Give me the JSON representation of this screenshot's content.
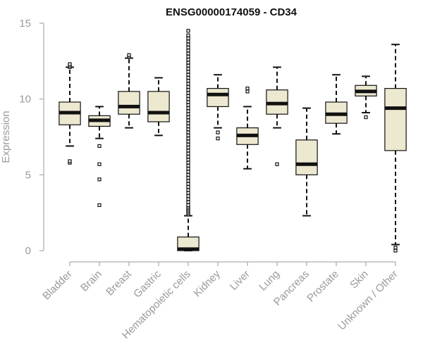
{
  "chart_data": {
    "type": "boxplot",
    "title": "ENSG00000174059 - CD34",
    "xlabel": "",
    "ylabel": "Expression",
    "ylim": [
      0,
      15
    ],
    "yticks": [
      0,
      5,
      10,
      15
    ],
    "grid": false,
    "legend": "none",
    "colors": {
      "box_fill": "#ede8d0",
      "box_stroke": "#111111",
      "axis": "#9a9a9a",
      "title": "#111111"
    },
    "categories": [
      "Bladder",
      "Brain",
      "Breast",
      "Gastric",
      "Hematopoietic cells",
      "Kidney",
      "Liver",
      "Lung",
      "Pancreas",
      "Prostate",
      "Skin",
      "Unknown / Other"
    ],
    "boxes": [
      {
        "name": "Bladder",
        "whisker_low": 6.9,
        "q1": 8.3,
        "median": 9.1,
        "q3": 9.8,
        "whisker_high": 12.1,
        "outliers": [
          5.8,
          5.9,
          12.1,
          12.2,
          12.3
        ]
      },
      {
        "name": "Brain",
        "whisker_low": 7.4,
        "q1": 8.2,
        "median": 8.6,
        "q3": 8.9,
        "whisker_high": 9.5,
        "outliers": [
          6.9,
          5.7,
          4.7,
          3.0
        ]
      },
      {
        "name": "Breast",
        "whisker_low": 8.1,
        "q1": 9.0,
        "median": 9.5,
        "q3": 10.5,
        "whisker_high": 12.7,
        "outliers": [
          12.8,
          12.9
        ]
      },
      {
        "name": "Gastric",
        "whisker_low": 7.6,
        "q1": 8.5,
        "median": 9.1,
        "q3": 10.5,
        "whisker_high": 11.4,
        "outliers": []
      },
      {
        "name": "Hematopoietic cells",
        "whisker_low": 0.0,
        "q1": 0.0,
        "median": 0.1,
        "q3": 0.9,
        "whisker_high": 2.3,
        "outliers": [
          2.4,
          2.5,
          2.6,
          2.7,
          2.8,
          2.9,
          3.0,
          3.2,
          3.4,
          3.6,
          3.8,
          4.0,
          4.2,
          4.4,
          4.6,
          4.8,
          5.0,
          5.2,
          5.4,
          5.6,
          5.8,
          6.0,
          6.2,
          6.4,
          6.6,
          6.8,
          7.0,
          7.2,
          7.4,
          7.6,
          7.8,
          8.0,
          8.2,
          8.4,
          8.6,
          8.8,
          9.0,
          9.2,
          9.4,
          9.6,
          9.8,
          10.0,
          10.2,
          10.4,
          10.6,
          10.8,
          11.0,
          11.2,
          11.4,
          11.6,
          11.8,
          12.0,
          12.2,
          12.4,
          12.6,
          12.8,
          13.0,
          13.2,
          13.4,
          13.6,
          13.8,
          14.0,
          14.2,
          14.5
        ]
      },
      {
        "name": "Kidney",
        "whisker_low": 8.1,
        "q1": 9.5,
        "median": 10.3,
        "q3": 10.7,
        "whisker_high": 11.6,
        "outliers": [
          7.4,
          7.8
        ]
      },
      {
        "name": "Liver",
        "whisker_low": 5.4,
        "q1": 7.0,
        "median": 7.6,
        "q3": 8.1,
        "whisker_high": 9.5,
        "outliers": [
          10.5,
          10.7
        ]
      },
      {
        "name": "Lung",
        "whisker_low": 8.1,
        "q1": 9.0,
        "median": 9.7,
        "q3": 10.6,
        "whisker_high": 12.1,
        "outliers": [
          5.7
        ]
      },
      {
        "name": "Pancreas",
        "whisker_low": 2.3,
        "q1": 5.0,
        "median": 5.7,
        "q3": 7.3,
        "whisker_high": 9.4,
        "outliers": []
      },
      {
        "name": "Prostate",
        "whisker_low": 7.7,
        "q1": 8.4,
        "median": 9.0,
        "q3": 9.8,
        "whisker_high": 11.6,
        "outliers": []
      },
      {
        "name": "Skin",
        "whisker_low": 9.1,
        "q1": 10.2,
        "median": 10.5,
        "q3": 10.9,
        "whisker_high": 11.5,
        "outliers": [
          8.8
        ]
      },
      {
        "name": "Unknown / Other",
        "whisker_low": 0.4,
        "q1": 6.6,
        "median": 9.4,
        "q3": 10.7,
        "whisker_high": 13.6,
        "outliers": [
          0.0,
          0.2
        ]
      }
    ]
  }
}
